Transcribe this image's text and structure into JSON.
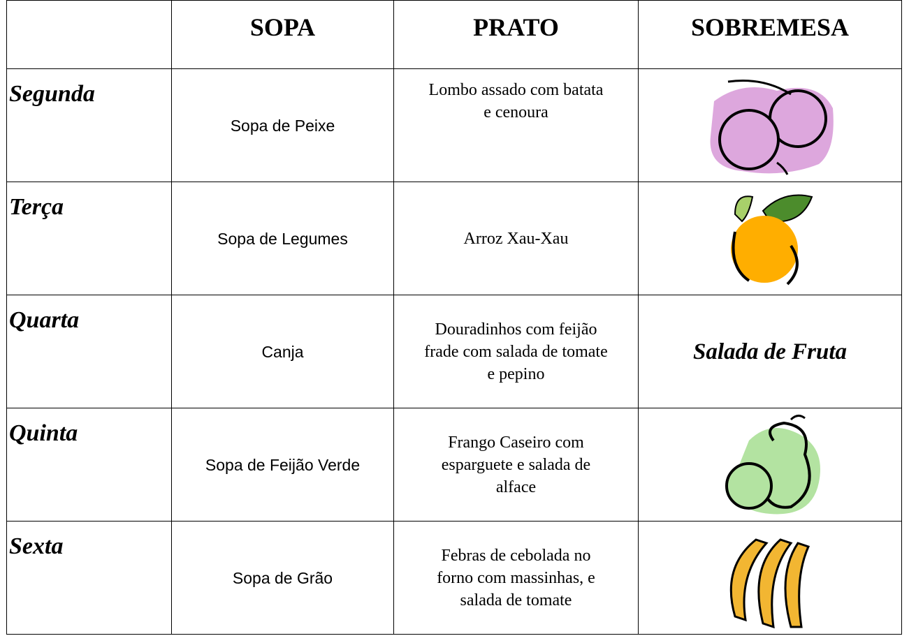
{
  "table": {
    "header": [
      "SOPA",
      "PRATO",
      "SOBREMESA"
    ],
    "rows": [
      {
        "day": "Segunda",
        "sopa": "Sopa de Peixe",
        "prato": "Lombo assado com batata e cenoura"
      },
      {
        "day": "Terça",
        "sopa": "Sopa de Legumes",
        "prato": "Arroz Xau-Xau"
      },
      {
        "day": "Quarta",
        "sopa": "Canja",
        "prato": "Douradinhos com feijão frade com salada de tomate e pepino",
        "sobremesa": "Salada de Fruta"
      },
      {
        "day": "Quinta",
        "sopa": "Sopa de Feijão Verde",
        "prato": "Frango Caseiro com esparguete e salada de alface"
      },
      {
        "day": "Sexta",
        "sopa": "Sopa de Grão",
        "prato": "Febras de cebolada no forno com massinhas, e salada de tomate"
      }
    ]
  }
}
